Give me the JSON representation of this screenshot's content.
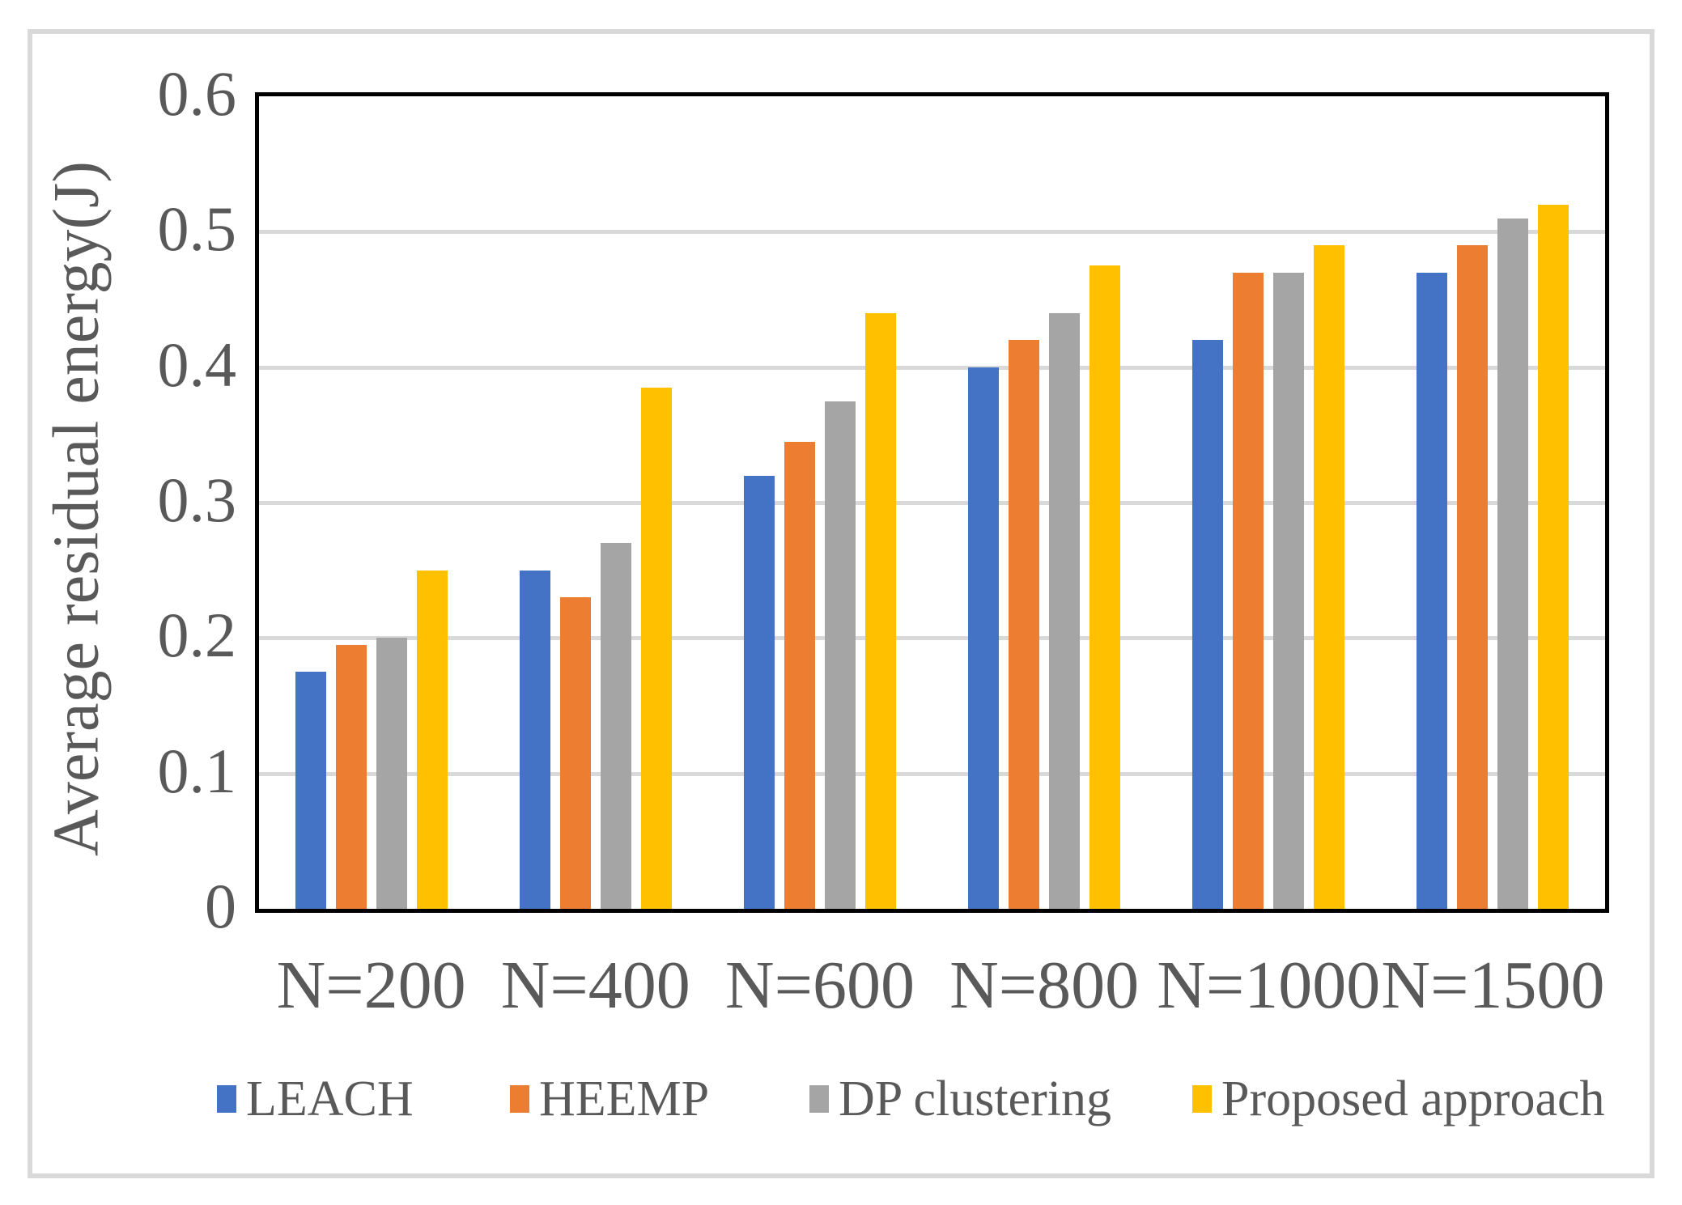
{
  "chart_data": {
    "type": "bar",
    "title": "",
    "categories": [
      "N=200",
      "N=400",
      "N=600",
      "N=800",
      "N=1000",
      "N=1500"
    ],
    "series": [
      {
        "name": "LEACH",
        "color": "#4472C4",
        "values": [
          0.175,
          0.25,
          0.32,
          0.4,
          0.42,
          0.47
        ]
      },
      {
        "name": "HEEMP",
        "color": "#ED7D31",
        "values": [
          0.195,
          0.23,
          0.345,
          0.42,
          0.47,
          0.49
        ]
      },
      {
        "name": "DP clustering",
        "color": "#A5A5A5",
        "values": [
          0.2,
          0.27,
          0.375,
          0.44,
          0.47,
          0.51
        ]
      },
      {
        "name": "Proposed approach",
        "color": "#FFC000",
        "values": [
          0.25,
          0.385,
          0.44,
          0.475,
          0.49,
          0.52
        ]
      }
    ],
    "xlabel": "",
    "ylabel": "Average residual energy(J)",
    "ylim": [
      0,
      0.6
    ],
    "ytick_step": 0.1,
    "ytick_labels": [
      "0",
      "0.1",
      "0.2",
      "0.3",
      "0.4",
      "0.5",
      "0.6"
    ],
    "grid": true,
    "legend_position": "bottom",
    "colors": {
      "axis_text": "#595959",
      "gridline": "#D9D9D9",
      "plot_border": "#000000",
      "outer_frame": "#D9D9D9"
    }
  }
}
